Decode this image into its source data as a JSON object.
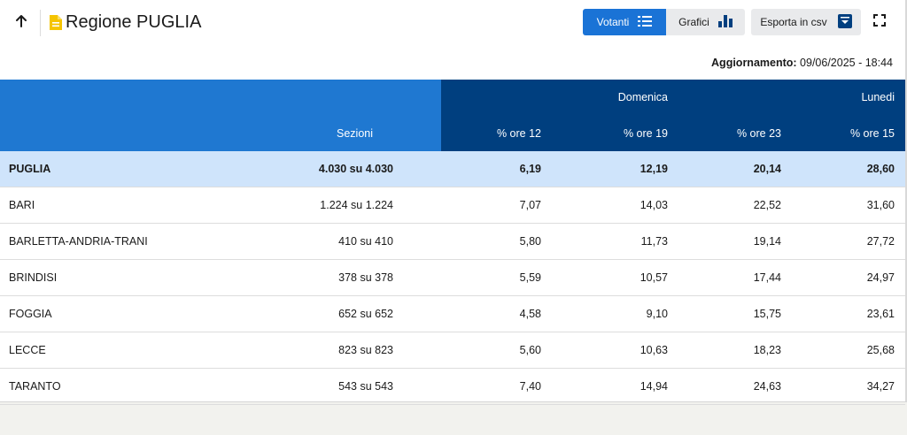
{
  "header": {
    "title": "Regione PUGLIA",
    "tabs": [
      {
        "label": "Votanti",
        "icon": "list-icon",
        "active": true
      },
      {
        "label": "Grafici",
        "icon": "bar-chart-icon",
        "active": false
      }
    ],
    "export_label": "Esporta in csv",
    "export_icon": "download-icon",
    "back_icon": "arrow-up-icon",
    "fullscreen_icon": "fullscreen-icon",
    "doc_icon_color": "#f5c400"
  },
  "update": {
    "label": "Aggiornamento:",
    "value": "09/06/2025 - 18:44"
  },
  "table": {
    "group_headers": {
      "domenica": "Domenica",
      "lunedi": "Lunedi"
    },
    "columns": [
      "Sezioni",
      "% ore 12",
      "% ore 19",
      "% ore 23",
      "% ore 15"
    ],
    "rows": [
      {
        "name": "PUGLIA",
        "sezioni": "4.030 su 4.030",
        "ore12": "6,19",
        "ore19": "12,19",
        "ore23": "20,14",
        "ore15": "28,60"
      },
      {
        "name": "BARI",
        "sezioni": "1.224 su 1.224",
        "ore12": "7,07",
        "ore19": "14,03",
        "ore23": "22,52",
        "ore15": "31,60"
      },
      {
        "name": "BARLETTA-ANDRIA-TRANI",
        "sezioni": "410 su 410",
        "ore12": "5,80",
        "ore19": "11,73",
        "ore23": "19,14",
        "ore15": "27,72"
      },
      {
        "name": "BRINDISI",
        "sezioni": "378 su 378",
        "ore12": "5,59",
        "ore19": "10,57",
        "ore23": "17,44",
        "ore15": "24,97"
      },
      {
        "name": "FOGGIA",
        "sezioni": "652 su 652",
        "ore12": "4,58",
        "ore19": "9,10",
        "ore23": "15,75",
        "ore15": "23,61"
      },
      {
        "name": "LECCE",
        "sezioni": "823 su 823",
        "ore12": "5,60",
        "ore19": "10,63",
        "ore23": "18,23",
        "ore15": "25,68"
      },
      {
        "name": "TARANTO",
        "sezioni": "543 su 543",
        "ore12": "7,40",
        "ore19": "14,94",
        "ore23": "24,63",
        "ore15": "34,27"
      }
    ]
  },
  "colors": {
    "primary": "#1a73d6",
    "header_light": "#1f78d1",
    "header_dark": "#003f7f",
    "total_row": "#cfe4fb"
  }
}
